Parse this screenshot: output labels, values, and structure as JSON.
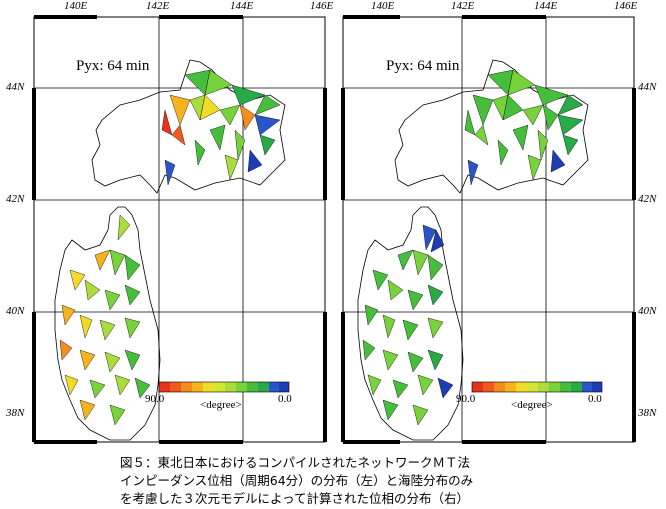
{
  "panels": [
    {
      "id": "left",
      "period_label": "Pyx:  64 min",
      "lon_ticks": [
        "140E",
        "142E",
        "144E",
        "146E"
      ],
      "lat_ticks": [
        "44N",
        "42N",
        "40N",
        "38N"
      ],
      "colorbar": {
        "min_label": "90.0",
        "unit_label": "<degree>",
        "max_label": "0.0"
      }
    },
    {
      "id": "right",
      "period_label": "Pyx:  64 min",
      "lon_ticks": [
        "140E",
        "142E",
        "144E",
        "146E"
      ],
      "lat_ticks": [
        "44N",
        "42N",
        "40N",
        "38N"
      ],
      "colorbar": {
        "min_label": "90.0",
        "unit_label": "<degree>",
        "max_label": "0.0"
      }
    }
  ],
  "colorbar_colors": [
    "#e8321e",
    "#f05a1e",
    "#f58c1e",
    "#f5b41e",
    "#f0dc28",
    "#d2e632",
    "#aadc3c",
    "#78d23c",
    "#46be3c",
    "#28aa46",
    "#2855c8",
    "#1e3cb4"
  ],
  "caption": {
    "line1": "図５：東北日本におけるコンパイルされたネットワークＭＴ法",
    "line2": "インピーダンス位相（周期64分）の分布（左）と海陸分布のみ",
    "line3": "を考慮した３次元モデルによって計算された位相の分布（右）"
  }
}
